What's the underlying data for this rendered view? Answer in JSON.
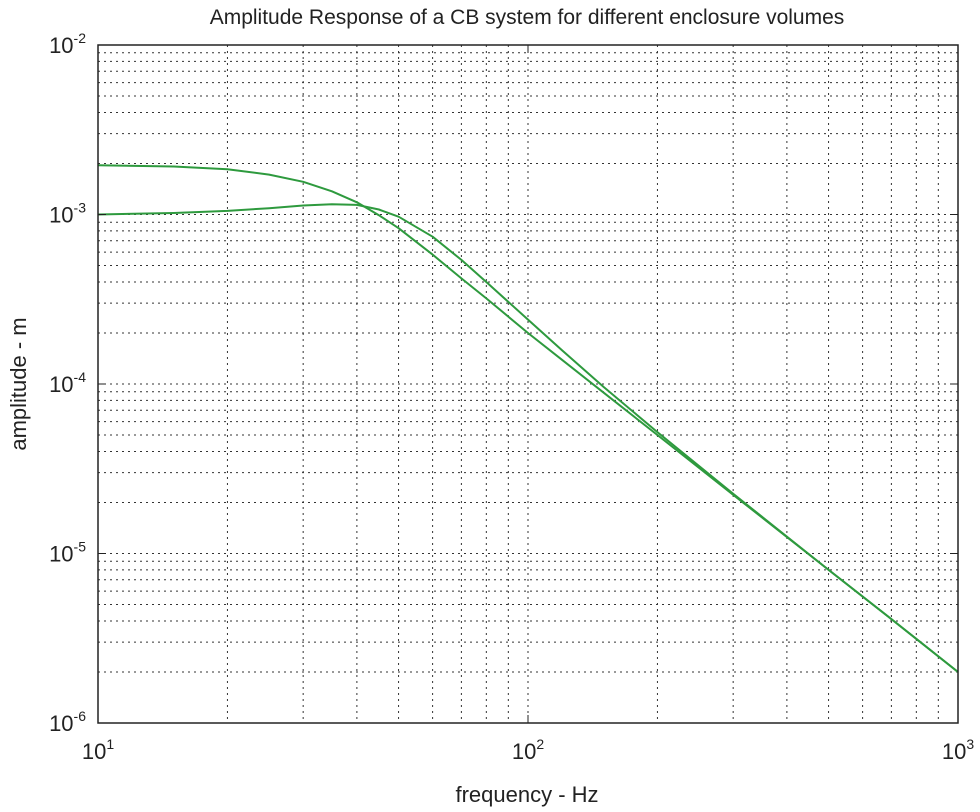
{
  "chart_data": {
    "type": "line",
    "title": "Amplitude Response of a CB system for different enclosure volumes",
    "xlabel": "frequency - Hz",
    "ylabel": "amplitude - m",
    "x_scale": "log",
    "y_scale": "log",
    "xlim": [
      10,
      1000
    ],
    "ylim": [
      1e-06,
      0.01
    ],
    "x_ticks": [
      {
        "base": "10",
        "exp": "1",
        "value": 10
      },
      {
        "base": "10",
        "exp": "2",
        "value": 100
      },
      {
        "base": "10",
        "exp": "3",
        "value": 1000
      }
    ],
    "y_ticks": [
      {
        "base": "10",
        "exp": "-2",
        "value": 0.01
      },
      {
        "base": "10",
        "exp": "-3",
        "value": 0.001
      },
      {
        "base": "10",
        "exp": "-4",
        "value": 0.0001
      },
      {
        "base": "10",
        "exp": "-5",
        "value": 1e-05
      },
      {
        "base": "10",
        "exp": "-6",
        "value": 1e-06
      }
    ],
    "grid": true,
    "grid_style": "dotted",
    "series": [
      {
        "color": "#2e9a3e",
        "x": [
          10,
          15,
          20,
          25,
          30,
          35,
          40,
          45,
          50,
          60,
          70,
          80,
          100,
          120,
          150,
          200,
          300,
          500,
          700,
          1000
        ],
        "y": [
          0.00195,
          0.00192,
          0.00185,
          0.00172,
          0.00156,
          0.00137,
          0.00118,
          0.00099,
          0.00083,
          0.00058,
          0.00042,
          0.00032,
          0.0002,
          0.000139,
          8.88e-05,
          5e-05,
          2.22e-05,
          8e-06,
          4.1e-06,
          2e-06
        ]
      },
      {
        "color": "#2e9a3e",
        "x": [
          10,
          15,
          20,
          25,
          30,
          35,
          40,
          45,
          50,
          60,
          70,
          80,
          100,
          120,
          150,
          200,
          300,
          500,
          700,
          1000
        ],
        "y": [
          0.001,
          0.00102,
          0.00105,
          0.00109,
          0.00113,
          0.00115,
          0.00114,
          0.00107,
          0.00097,
          0.00074,
          0.00054,
          0.0004,
          0.00024,
          0.000158,
          9.6e-05,
          5.2e-05,
          2.25e-05,
          8e-06,
          4.1e-06,
          2e-06
        ]
      }
    ],
    "background": "#ffffff",
    "grid_color": "#333333"
  }
}
